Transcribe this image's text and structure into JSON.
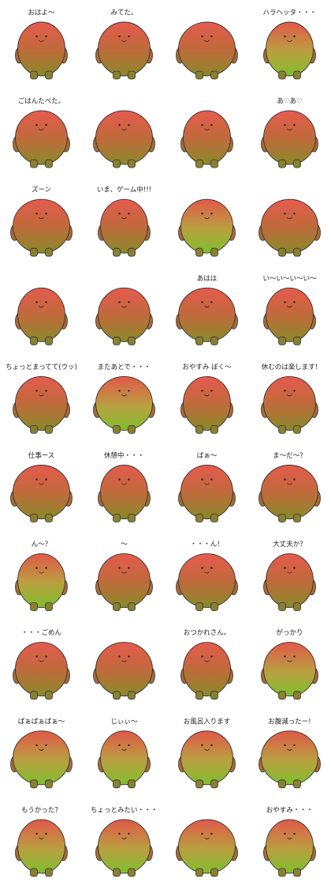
{
  "stickers": [
    {
      "caption": "おはよ〜"
    },
    {
      "caption": "みてた。"
    },
    {},
    {
      "caption": "ハラヘッタ・・・"
    },
    {
      "caption": "ごはんたべた。"
    },
    {},
    {},
    {
      "caption": "あ♡あ♡"
    },
    {
      "caption": "ズーン"
    },
    {
      "caption": "いま、ゲーム中!!!"
    },
    {},
    {},
    {},
    {},
    {
      "caption": "あはは"
    },
    {
      "caption": "い〜い〜い〜い〜"
    },
    {
      "caption": "ちょっとまってて(ウッ)"
    },
    {
      "caption": "またあとで・・・"
    },
    {
      "caption": "おやすみ ぽく〜"
    },
    {
      "caption": "休むのは楽します!"
    },
    {
      "caption": "仕事ース"
    },
    {
      "caption": "休憩中・・・"
    },
    {
      "caption": "ぱぁ〜"
    },
    {
      "caption": "ま〜だ〜？"
    },
    {
      "caption": "ん〜？"
    },
    {
      "caption": "〜"
    },
    {
      "caption": "・・・ん！"
    },
    {
      "caption": "大丈夫か？"
    },
    {
      "caption": "・・・ごめん"
    },
    {},
    {
      "caption": "おつかれさん。"
    },
    {
      "caption": "がっかり"
    },
    {
      "caption": "ぱぁぱぁぱぁ〜"
    },
    {
      "caption": "じぃぃ〜"
    },
    {
      "caption": "お風呂入ります"
    },
    {
      "caption": "お腹減ったー!"
    },
    {
      "caption": "もうかった？"
    },
    {
      "caption": "ちょっとみたい・・・"
    },
    {},
    {
      "caption": "おやすみ・・・"
    }
  ]
}
